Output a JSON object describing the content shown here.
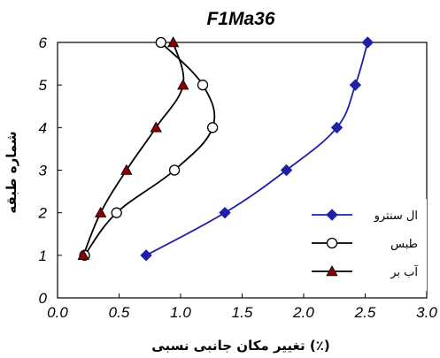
{
  "chart_data": {
    "type": "line",
    "title": "F1Ma36",
    "xlabel": "تغییر مکان جانبی نسبی (٪)",
    "ylabel": "شماره طبقه",
    "xlim": [
      0,
      3
    ],
    "ylim": [
      0,
      6
    ],
    "x_ticks": [
      "0.0",
      "0.5",
      "1.0",
      "1.5",
      "2.0",
      "2.5",
      "3.0"
    ],
    "y_ticks": [
      "0",
      "1",
      "2",
      "3",
      "4",
      "5",
      "6"
    ],
    "legend_position": "right",
    "series": [
      {
        "name": "ال سنترو",
        "color": "#1f1fa8",
        "marker": "diamond",
        "points": [
          [
            0.72,
            1
          ],
          [
            1.36,
            2
          ],
          [
            1.86,
            3
          ],
          [
            2.27,
            4
          ],
          [
            2.42,
            5
          ],
          [
            2.52,
            6
          ]
        ]
      },
      {
        "name": "طبس",
        "color": "#000000",
        "marker": "open-circle",
        "points": [
          [
            0.22,
            1
          ],
          [
            0.48,
            2
          ],
          [
            0.95,
            3
          ],
          [
            1.26,
            4
          ],
          [
            1.18,
            5
          ],
          [
            0.84,
            6
          ]
        ]
      },
      {
        "name": "آب بر",
        "color": "#000000",
        "marker_color": "#8b0000",
        "marker": "triangle",
        "points": [
          [
            0.21,
            1
          ],
          [
            0.35,
            2
          ],
          [
            0.56,
            3
          ],
          [
            0.8,
            4
          ],
          [
            1.02,
            5
          ],
          [
            0.94,
            6
          ]
        ]
      }
    ]
  }
}
